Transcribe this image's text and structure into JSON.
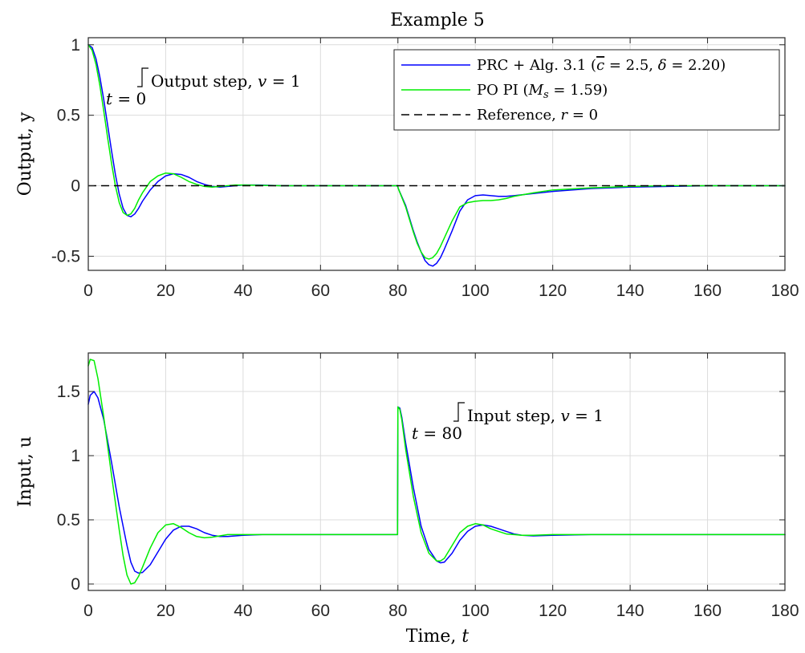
{
  "chart_data": [
    {
      "type": "line",
      "title": "Example 5",
      "xlabel": "",
      "ylabel": "Output, y",
      "xlim": [
        0,
        180
      ],
      "ylim": [
        -0.6,
        1.05
      ],
      "xticks": [
        0,
        20,
        40,
        60,
        80,
        100,
        120,
        140,
        160,
        180
      ],
      "xtick_labels": [
        "0",
        "20",
        "40",
        "60",
        "80",
        "100",
        "120",
        "140",
        "160",
        "180"
      ],
      "yticks": [
        1,
        0.5,
        0,
        -0.5
      ],
      "ytick_labels": [
        "1",
        "0.5",
        "0",
        "-0.5"
      ],
      "grid": true,
      "legend": "top-right",
      "series": [
        {
          "name": "PRC + Alg. 3.1 (c̄ = 2.5, δ = 2.20)",
          "color": "#0000ff",
          "style": "solid",
          "x": [
            0,
            1,
            2,
            3,
            4,
            5,
            6,
            7,
            8,
            9,
            10,
            11,
            12,
            13,
            14,
            16,
            18,
            20,
            22,
            24,
            26,
            28,
            30,
            32,
            34,
            36,
            38,
            40,
            44,
            50,
            60,
            70,
            79.9,
            80.1,
            82,
            84,
            85,
            86,
            87,
            88,
            89,
            90,
            91,
            92,
            94,
            96,
            98,
            100,
            102,
            104,
            106,
            108,
            110,
            115,
            120,
            130,
            140,
            150,
            160,
            170,
            180
          ],
          "y": [
            1.0,
            0.98,
            0.9,
            0.77,
            0.61,
            0.43,
            0.25,
            0.08,
            -0.06,
            -0.16,
            -0.21,
            -0.22,
            -0.2,
            -0.16,
            -0.11,
            -0.03,
            0.03,
            0.07,
            0.085,
            0.08,
            0.06,
            0.03,
            0.01,
            -0.005,
            -0.01,
            -0.005,
            0.0,
            0.005,
            0.005,
            0.0,
            0.0,
            0.0,
            0.0,
            -0.02,
            -0.14,
            -0.32,
            -0.4,
            -0.47,
            -0.53,
            -0.56,
            -0.57,
            -0.55,
            -0.51,
            -0.45,
            -0.32,
            -0.18,
            -0.1,
            -0.07,
            -0.065,
            -0.07,
            -0.075,
            -0.075,
            -0.07,
            -0.055,
            -0.04,
            -0.02,
            -0.01,
            -0.005,
            0.0,
            0.0,
            0.0
          ]
        },
        {
          "name": "PO PI (Mₛ = 1.59)",
          "color": "#00ee00",
          "style": "solid",
          "x": [
            0,
            1,
            2,
            3,
            4,
            5,
            6,
            7,
            8,
            9,
            10,
            11,
            12,
            13,
            14,
            16,
            18,
            20,
            22,
            24,
            26,
            28,
            30,
            32,
            34,
            36,
            38,
            40,
            44,
            50,
            60,
            70,
            79.9,
            80.1,
            82,
            84,
            85,
            86,
            87,
            88,
            89,
            90,
            91,
            92,
            94,
            96,
            98,
            100,
            102,
            104,
            106,
            108,
            110,
            115,
            120,
            130,
            140,
            150,
            160,
            170,
            180
          ],
          "y": [
            1.0,
            0.96,
            0.86,
            0.71,
            0.53,
            0.34,
            0.16,
            0.0,
            -0.12,
            -0.19,
            -0.21,
            -0.2,
            -0.16,
            -0.1,
            -0.05,
            0.03,
            0.07,
            0.09,
            0.085,
            0.06,
            0.03,
            0.01,
            -0.005,
            -0.01,
            -0.005,
            0.0,
            0.005,
            0.005,
            0.003,
            0.0,
            0.0,
            0.0,
            0.0,
            -0.02,
            -0.15,
            -0.33,
            -0.41,
            -0.47,
            -0.51,
            -0.52,
            -0.51,
            -0.48,
            -0.43,
            -0.37,
            -0.25,
            -0.15,
            -0.12,
            -0.11,
            -0.105,
            -0.105,
            -0.1,
            -0.09,
            -0.075,
            -0.05,
            -0.03,
            -0.015,
            -0.005,
            0.0,
            0.0,
            0.0,
            0.0
          ]
        },
        {
          "name": "Reference, r = 0",
          "color": "#000000",
          "style": "dashed",
          "x": [
            0,
            180
          ],
          "y": [
            0,
            0
          ]
        }
      ],
      "annotations": [
        {
          "text": "Output step, v = 1",
          "x": 0,
          "y": 1
        },
        {
          "text": "t = 0",
          "x": 0,
          "y": 1
        }
      ]
    },
    {
      "type": "line",
      "title": "",
      "xlabel": "Time, t",
      "ylabel": "Input, u",
      "xlim": [
        0,
        180
      ],
      "ylim": [
        -0.05,
        1.8
      ],
      "xticks": [
        0,
        20,
        40,
        60,
        80,
        100,
        120,
        140,
        160,
        180
      ],
      "xtick_labels": [
        "0",
        "20",
        "40",
        "60",
        "80",
        "100",
        "120",
        "140",
        "160",
        "180"
      ],
      "yticks": [
        1.5,
        1,
        0.5,
        0
      ],
      "ytick_labels": [
        "1.5",
        "1",
        "0.5",
        "0"
      ],
      "grid": true,
      "series": [
        {
          "name": "PRC + Alg. 3.1",
          "color": "#0000ff",
          "style": "solid",
          "x": [
            0,
            0.5,
            1.5,
            2.5,
            4,
            6,
            8,
            10,
            11,
            12,
            13,
            14,
            16,
            18,
            20,
            22,
            24,
            26,
            28,
            30,
            32,
            34,
            36,
            40,
            45,
            50,
            60,
            70,
            79.9,
            80.0,
            80.5,
            81,
            82,
            84,
            86,
            88,
            90,
            91,
            92,
            94,
            96,
            98,
            100,
            102,
            104,
            106,
            108,
            110,
            112,
            115,
            120,
            130,
            140,
            150,
            160,
            170,
            180
          ],
          "y": [
            1.4,
            1.47,
            1.5,
            1.45,
            1.28,
            0.95,
            0.6,
            0.3,
            0.17,
            0.1,
            0.085,
            0.09,
            0.15,
            0.25,
            0.35,
            0.42,
            0.45,
            0.45,
            0.43,
            0.4,
            0.38,
            0.37,
            0.37,
            0.38,
            0.385,
            0.385,
            0.385,
            0.385,
            0.385,
            1.38,
            1.37,
            1.3,
            1.1,
            0.75,
            0.45,
            0.27,
            0.18,
            0.165,
            0.17,
            0.24,
            0.34,
            0.41,
            0.45,
            0.46,
            0.45,
            0.43,
            0.41,
            0.39,
            0.38,
            0.375,
            0.38,
            0.385,
            0.385,
            0.385,
            0.385,
            0.385,
            0.385
          ]
        },
        {
          "name": "PO PI",
          "color": "#00ee00",
          "style": "solid",
          "x": [
            0,
            0.5,
            1.5,
            2.5,
            4,
            6,
            8,
            9,
            10,
            11,
            12,
            13,
            14,
            16,
            18,
            20,
            22,
            24,
            26,
            28,
            30,
            32,
            34,
            36,
            40,
            45,
            50,
            60,
            70,
            79.9,
            80.0,
            80.5,
            81,
            82,
            84,
            86,
            88,
            90,
            91,
            92,
            94,
            96,
            98,
            100,
            102,
            104,
            106,
            108,
            110,
            112,
            115,
            120,
            130,
            140,
            150,
            160,
            170,
            180
          ],
          "y": [
            1.7,
            1.75,
            1.74,
            1.6,
            1.3,
            0.85,
            0.42,
            0.22,
            0.07,
            0.0,
            0.01,
            0.06,
            0.13,
            0.28,
            0.4,
            0.46,
            0.47,
            0.44,
            0.4,
            0.37,
            0.36,
            0.365,
            0.375,
            0.385,
            0.385,
            0.385,
            0.385,
            0.385,
            0.385,
            0.385,
            1.38,
            1.36,
            1.28,
            1.05,
            0.68,
            0.4,
            0.24,
            0.18,
            0.18,
            0.2,
            0.3,
            0.4,
            0.45,
            0.47,
            0.46,
            0.43,
            0.41,
            0.39,
            0.385,
            0.38,
            0.38,
            0.385,
            0.385,
            0.385,
            0.385,
            0.385,
            0.385,
            0.385
          ]
        }
      ],
      "annotations": [
        {
          "text": "Input step, v = 1",
          "x": 80,
          "y": 1.38
        },
        {
          "text": "t = 80",
          "x": 80,
          "y": 1.38
        }
      ]
    }
  ],
  "legend": {
    "item0": {
      "pre": "PRC + Alg. 3.1 (",
      "c": "c",
      "eq1": " = 2.5, ",
      "delta": "δ",
      "eq2": " = 2.20)"
    },
    "item1": {
      "pre": "PO PI (",
      "M": "M",
      "s": "s",
      "eq": " = 1.59)"
    },
    "item2": {
      "pre": "Reference, ",
      "r": "r",
      "eq": " = 0"
    }
  },
  "annot1": {
    "label": "Output step, ",
    "v": "v",
    "eq": " = 1",
    "t": "t",
    "teq": " = 0"
  },
  "annot2": {
    "label": "Input step, ",
    "v": "v",
    "eq": " = 1",
    "t": "t",
    "teq": " = 80"
  },
  "xlabel_bottom": {
    "pre": "Time, ",
    "t": "t"
  }
}
